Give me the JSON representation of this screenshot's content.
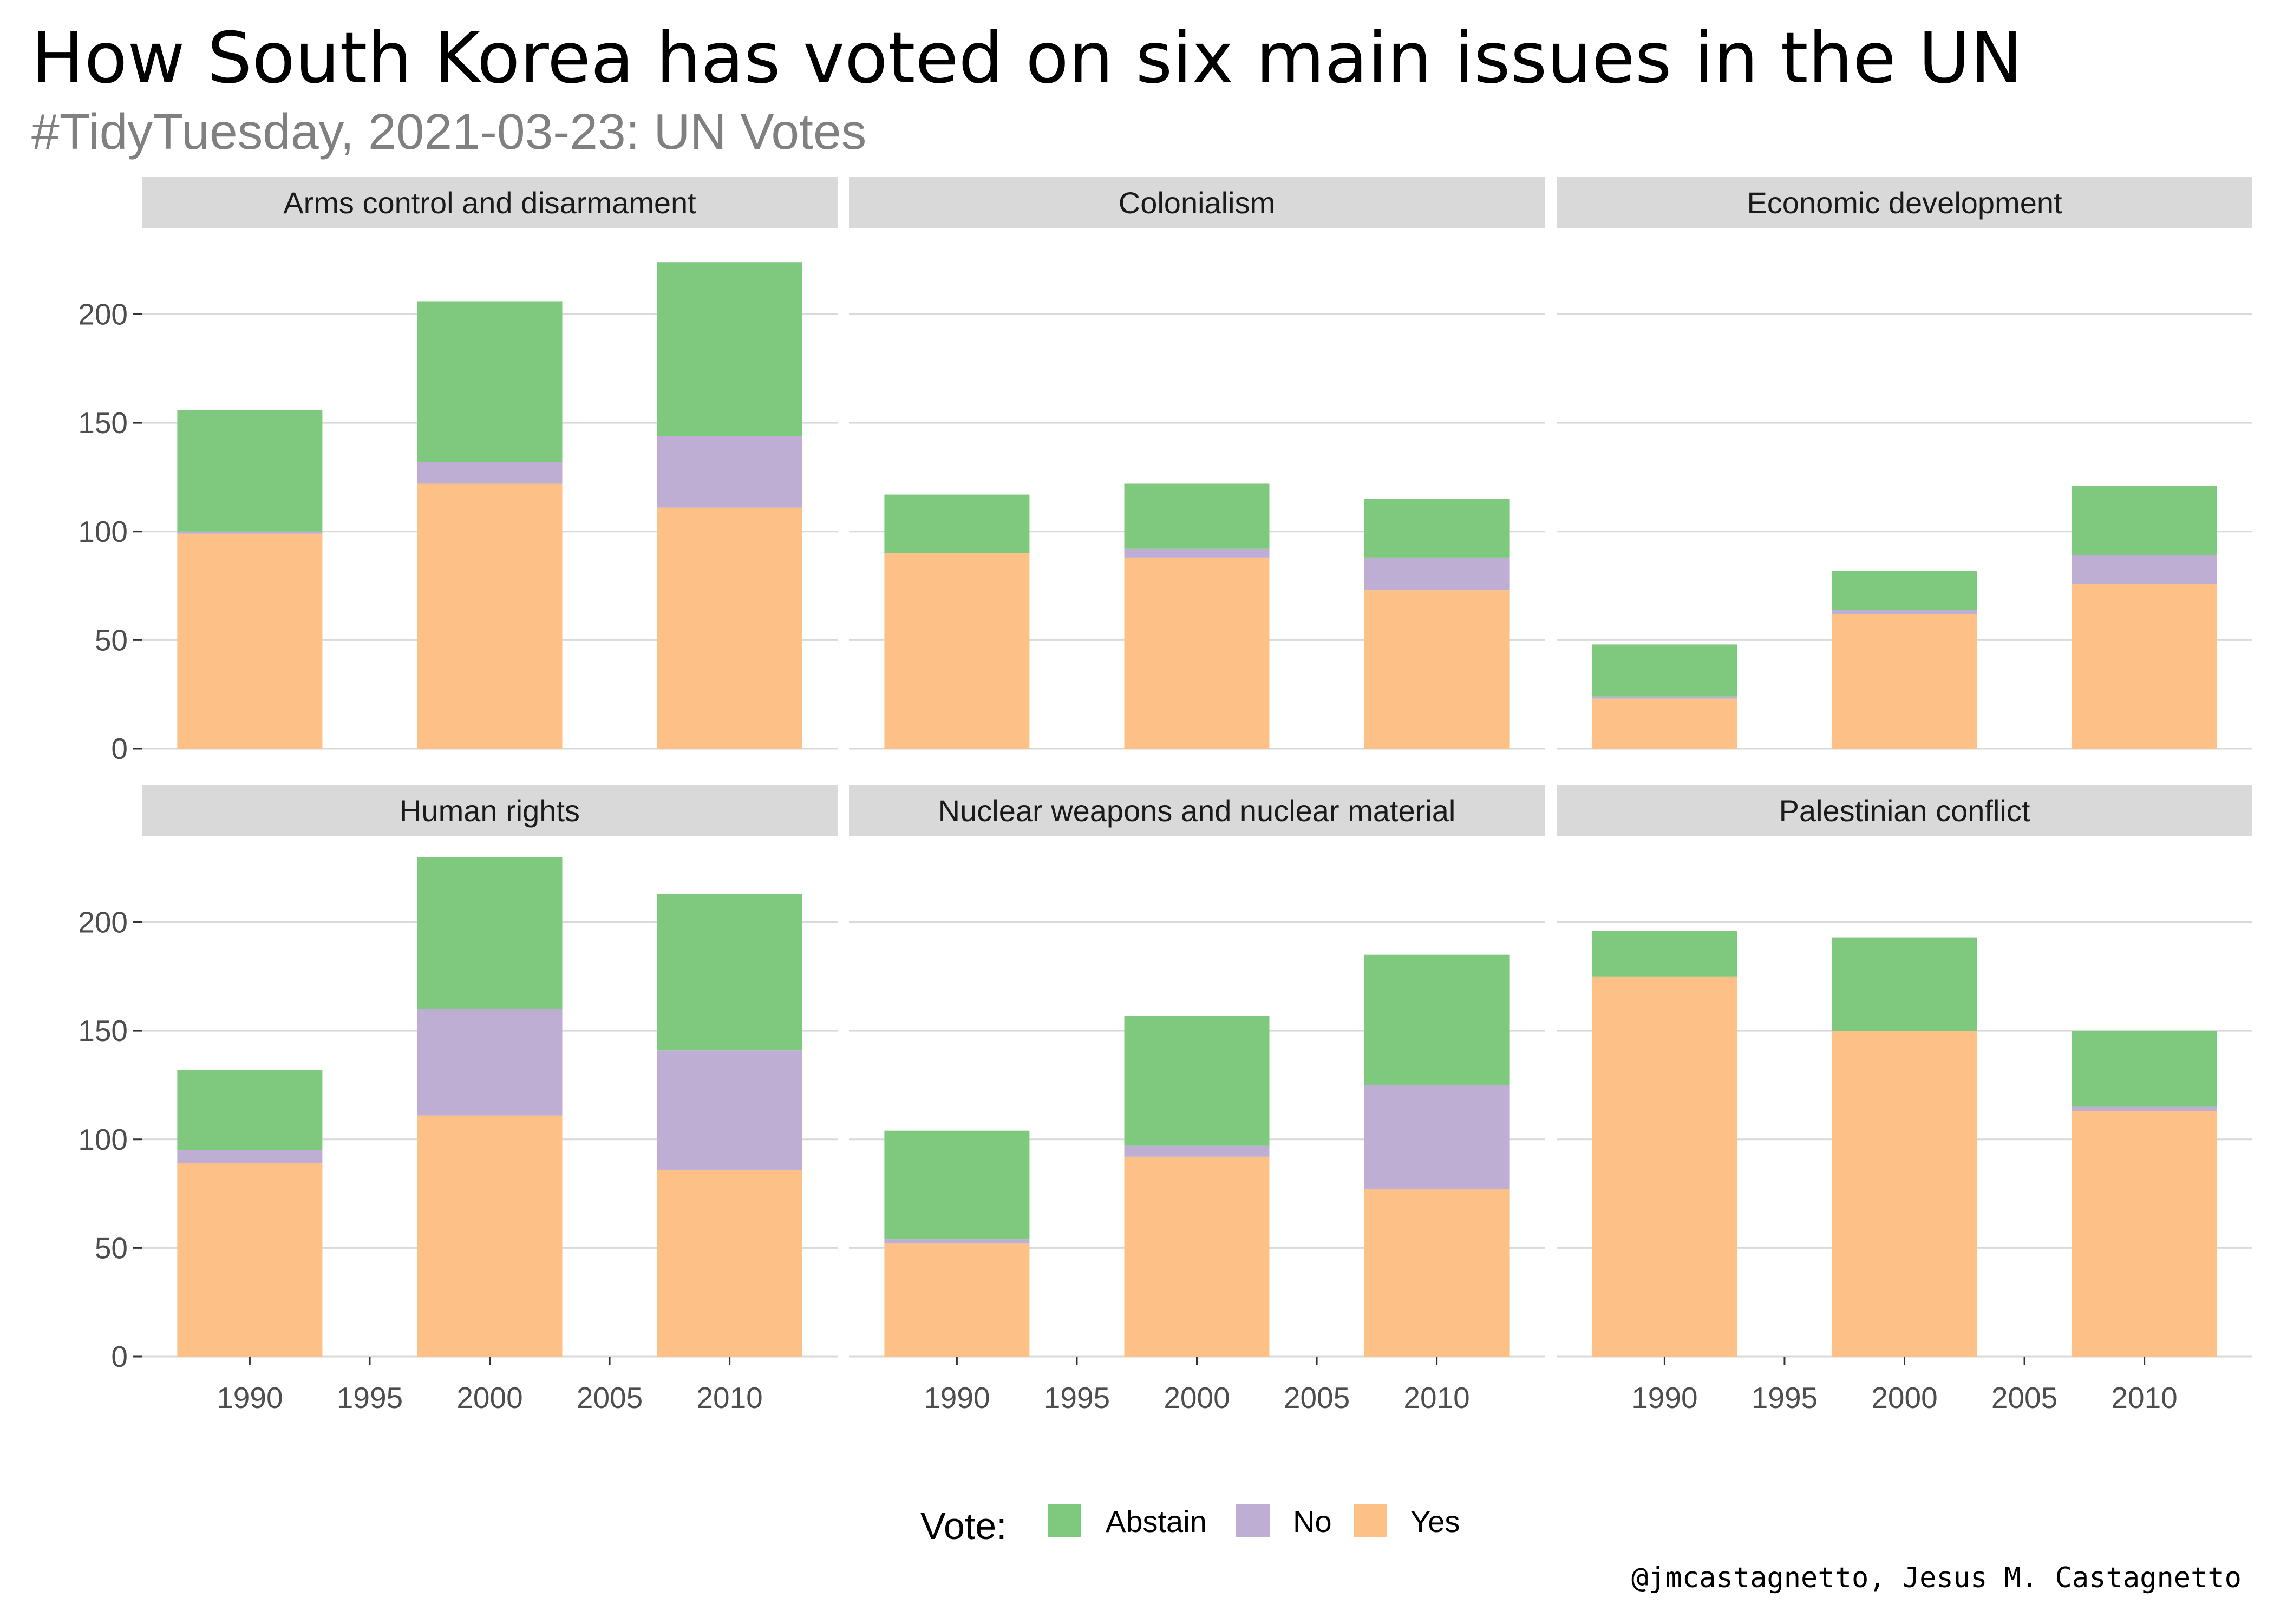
{
  "title": "How South Korea has voted on six main issues in the UN",
  "subtitle": "#TidyTuesday, 2021-03-23: UN Votes",
  "caption": "@jmcastagnetto, Jesus M. Castagnetto",
  "legend": {
    "title": "Vote:",
    "items": [
      {
        "label": "Abstain",
        "color": "#7fc97f"
      },
      {
        "label": "No",
        "color": "#beaed4"
      },
      {
        "label": "Yes",
        "color": "#fdc086"
      }
    ]
  },
  "chart_data": {
    "type": "bar",
    "stacked": true,
    "facets": [
      "Arms control and disarmament",
      "Colonialism",
      "Economic development",
      "Human rights",
      "Nuclear weapons and nuclear material",
      "Palestinian conflict"
    ],
    "x": [
      1990,
      2000,
      2010
    ],
    "x_ticks": [
      1990,
      1995,
      2000,
      2005,
      2010
    ],
    "xlim": [
      1985.5,
      2014.5
    ],
    "y_ticks": [
      0,
      50,
      100,
      150,
      200
    ],
    "ylim": [
      0,
      240
    ],
    "series": [
      {
        "name": "Yes",
        "color": "#fdc086",
        "values": [
          [
            99,
            122,
            111
          ],
          [
            90,
            88,
            73
          ],
          [
            23,
            62,
            76
          ],
          [
            89,
            111,
            86
          ],
          [
            52,
            92,
            77
          ],
          [
            175,
            150,
            113
          ]
        ]
      },
      {
        "name": "No",
        "color": "#beaed4",
        "values": [
          [
            1,
            10,
            33
          ],
          [
            0,
            4,
            15
          ],
          [
            1,
            2,
            13
          ],
          [
            6,
            49,
            55
          ],
          [
            2,
            5,
            48
          ],
          [
            0,
            0,
            2
          ]
        ]
      },
      {
        "name": "Abstain",
        "color": "#7fc97f",
        "values": [
          [
            56,
            74,
            80
          ],
          [
            27,
            30,
            27
          ],
          [
            24,
            18,
            32
          ],
          [
            37,
            70,
            72
          ],
          [
            50,
            60,
            60
          ],
          [
            21,
            43,
            35
          ]
        ]
      }
    ]
  }
}
